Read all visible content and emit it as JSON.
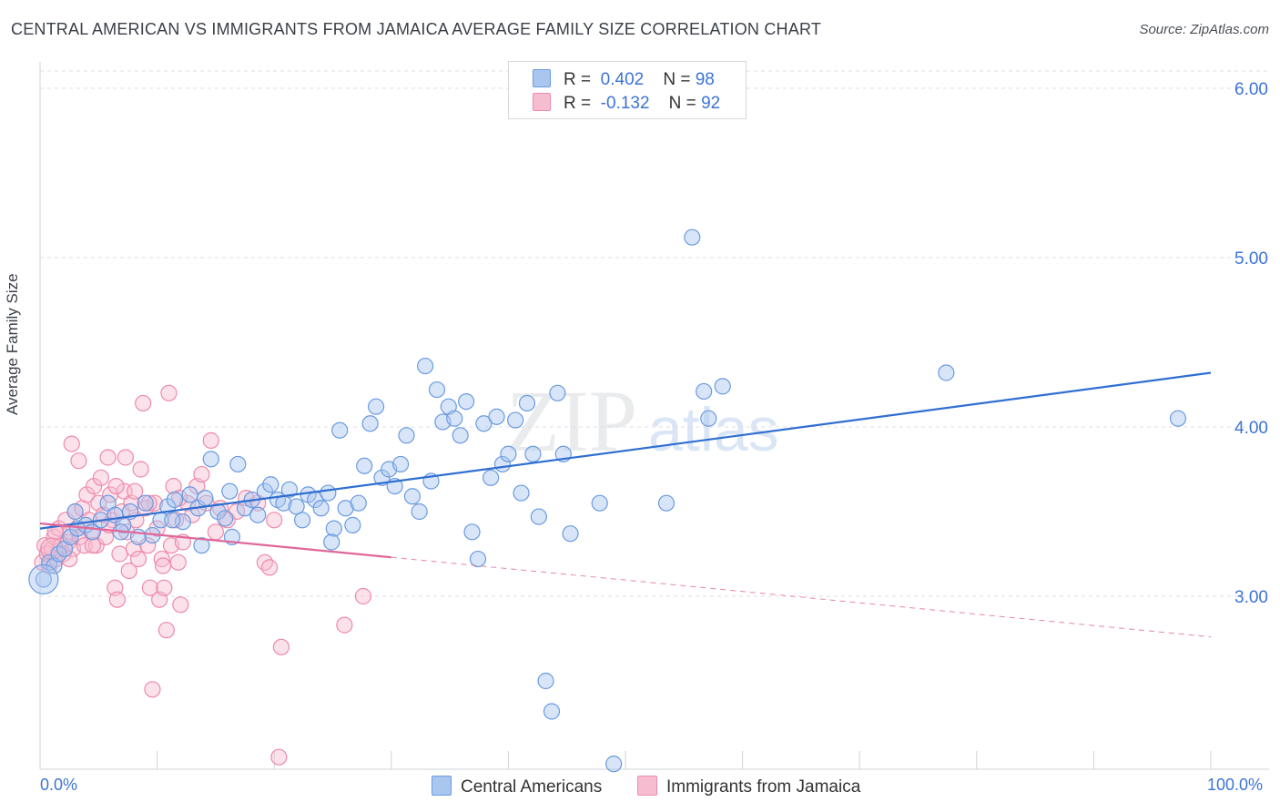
{
  "title": "CENTRAL AMERICAN VS IMMIGRANTS FROM JAMAICA AVERAGE FAMILY SIZE CORRELATION CHART",
  "source": "Source: ZipAtlas.com",
  "watermark": {
    "zip": "ZIP",
    "atlas": "atlas"
  },
  "legend": {
    "rows": [
      {
        "r_label": "R =",
        "r_value": "0.402",
        "n_label": "N =",
        "n_value": "98"
      },
      {
        "r_label": "R =",
        "r_value": "-0.132",
        "n_label": "N =",
        "n_value": "92"
      }
    ]
  },
  "bottom_legend": {
    "series1": "Central Americans",
    "series2": "Immigrants from Jamaica"
  },
  "x_axis": {
    "min_label": "0.0%",
    "max_label": "100.0%"
  },
  "chart_data": {
    "type": "scatter",
    "title": "CENTRAL AMERICAN VS IMMIGRANTS FROM JAMAICA AVERAGE FAMILY SIZE CORRELATION CHART",
    "xlabel": "",
    "ylabel": "Average Family Size",
    "xlim": [
      0,
      100
    ],
    "ylim": [
      2.0,
      6.15
    ],
    "y_ticks": [
      3.0,
      4.0,
      5.0,
      6.0
    ],
    "y_tick_labels": [
      "3.00",
      "4.00",
      "5.00",
      "6.00"
    ],
    "grid": true,
    "colors": {
      "series1": "#6a9be0",
      "series2": "#ee8aaa",
      "line1": "#2f6fd1",
      "line2": "#e0679a",
      "fill1": "#a9c6ef",
      "fill2": "#f6bcd0"
    },
    "series": [
      {
        "name": "Central Americans",
        "R": 0.402,
        "N": 98,
        "trend": {
          "x": [
            0,
            100
          ],
          "y": [
            3.4,
            4.32
          ]
        },
        "points": [
          [
            0.3,
            3.1
          ],
          [
            0.8,
            3.2
          ],
          [
            1.2,
            3.18
          ],
          [
            1.6,
            3.25
          ],
          [
            2.1,
            3.28
          ],
          [
            2.6,
            3.35
          ],
          [
            3.2,
            3.4
          ],
          [
            3.9,
            3.42
          ],
          [
            4.5,
            3.38
          ],
          [
            5.2,
            3.45
          ],
          [
            5.8,
            3.55
          ],
          [
            6.4,
            3.48
          ],
          [
            7.1,
            3.42
          ],
          [
            7.7,
            3.5
          ],
          [
            8.4,
            3.35
          ],
          [
            9.0,
            3.55
          ],
          [
            9.6,
            3.36
          ],
          [
            10.3,
            3.45
          ],
          [
            10.9,
            3.53
          ],
          [
            11.5,
            3.57
          ],
          [
            12.2,
            3.44
          ],
          [
            12.8,
            3.6
          ],
          [
            13.5,
            3.52
          ],
          [
            14.1,
            3.58
          ],
          [
            14.6,
            3.81
          ],
          [
            15.2,
            3.5
          ],
          [
            15.8,
            3.46
          ],
          [
            16.4,
            3.35
          ],
          [
            16.9,
            3.78
          ],
          [
            17.5,
            3.52
          ],
          [
            18.1,
            3.57
          ],
          [
            18.6,
            3.48
          ],
          [
            19.2,
            3.62
          ],
          [
            19.7,
            3.66
          ],
          [
            20.3,
            3.57
          ],
          [
            20.8,
            3.55
          ],
          [
            21.3,
            3.63
          ],
          [
            21.9,
            3.53
          ],
          [
            22.4,
            3.45
          ],
          [
            22.9,
            3.6
          ],
          [
            23.5,
            3.57
          ],
          [
            24.0,
            3.52
          ],
          [
            24.6,
            3.61
          ],
          [
            25.1,
            3.4
          ],
          [
            25.6,
            3.98
          ],
          [
            26.1,
            3.52
          ],
          [
            26.7,
            3.42
          ],
          [
            27.2,
            3.55
          ],
          [
            27.7,
            3.77
          ],
          [
            28.2,
            4.02
          ],
          [
            28.7,
            4.12
          ],
          [
            29.2,
            3.7
          ],
          [
            29.8,
            3.75
          ],
          [
            30.3,
            3.65
          ],
          [
            30.8,
            3.78
          ],
          [
            31.3,
            3.95
          ],
          [
            31.8,
            3.59
          ],
          [
            32.4,
            3.5
          ],
          [
            32.9,
            4.36
          ],
          [
            33.4,
            3.68
          ],
          [
            33.9,
            4.22
          ],
          [
            34.4,
            4.03
          ],
          [
            34.9,
            4.12
          ],
          [
            35.4,
            4.05
          ],
          [
            35.9,
            3.95
          ],
          [
            36.4,
            4.15
          ],
          [
            36.9,
            3.38
          ],
          [
            37.4,
            3.22
          ],
          [
            37.9,
            4.02
          ],
          [
            38.5,
            3.7
          ],
          [
            39.0,
            4.06
          ],
          [
            39.5,
            3.78
          ],
          [
            40.0,
            3.84
          ],
          [
            40.6,
            4.04
          ],
          [
            41.1,
            3.61
          ],
          [
            41.6,
            4.14
          ],
          [
            42.1,
            3.84
          ],
          [
            42.6,
            3.47
          ],
          [
            43.2,
            2.5
          ],
          [
            43.7,
            2.32
          ],
          [
            44.2,
            4.2
          ],
          [
            44.7,
            3.84
          ],
          [
            45.3,
            3.37
          ],
          [
            47.8,
            3.55
          ],
          [
            49.0,
            2.01
          ],
          [
            53.5,
            3.55
          ],
          [
            55.7,
            5.12
          ],
          [
            56.7,
            4.21
          ],
          [
            58.3,
            4.24
          ],
          [
            57.1,
            4.05
          ],
          [
            77.4,
            4.32
          ],
          [
            97.2,
            4.05
          ],
          [
            3.0,
            3.5
          ],
          [
            6.9,
            3.38
          ],
          [
            11.3,
            3.45
          ],
          [
            13.8,
            3.3
          ],
          [
            16.2,
            3.62
          ],
          [
            24.9,
            3.32
          ]
        ]
      },
      {
        "name": "Immigrants from Jamaica",
        "R": -0.132,
        "N": 92,
        "trend": {
          "x": [
            0,
            30
          ],
          "y": [
            3.43,
            3.23
          ]
        },
        "trend_dashed": {
          "x": [
            30,
            100
          ],
          "y": [
            3.23,
            2.76
          ]
        },
        "points": [
          [
            0.2,
            3.2
          ],
          [
            0.4,
            3.3
          ],
          [
            0.6,
            3.25
          ],
          [
            0.8,
            3.18
          ],
          [
            1.0,
            3.28
          ],
          [
            1.2,
            3.35
          ],
          [
            1.4,
            3.22
          ],
          [
            1.6,
            3.4
          ],
          [
            1.8,
            3.3
          ],
          [
            2.0,
            3.25
          ],
          [
            2.2,
            3.45
          ],
          [
            2.4,
            3.32
          ],
          [
            2.6,
            3.38
          ],
          [
            2.8,
            3.28
          ],
          [
            3.0,
            3.5
          ],
          [
            3.2,
            3.4
          ],
          [
            3.4,
            3.35
          ],
          [
            3.6,
            3.52
          ],
          [
            3.8,
            3.3
          ],
          [
            4.0,
            3.6
          ],
          [
            4.2,
            3.45
          ],
          [
            4.4,
            3.38
          ],
          [
            4.6,
            3.65
          ],
          [
            4.8,
            3.3
          ],
          [
            5.0,
            3.55
          ],
          [
            5.2,
            3.7
          ],
          [
            5.4,
            3.48
          ],
          [
            5.6,
            3.35
          ],
          [
            5.8,
            3.82
          ],
          [
            6.0,
            3.6
          ],
          [
            6.2,
            3.45
          ],
          [
            6.4,
            3.05
          ],
          [
            6.6,
            2.98
          ],
          [
            6.8,
            3.25
          ],
          [
            7.0,
            3.5
          ],
          [
            7.2,
            3.62
          ],
          [
            7.4,
            3.38
          ],
          [
            7.6,
            3.15
          ],
          [
            7.8,
            3.55
          ],
          [
            8.0,
            3.28
          ],
          [
            8.2,
            3.45
          ],
          [
            8.4,
            3.22
          ],
          [
            8.6,
            3.75
          ],
          [
            8.8,
            4.14
          ],
          [
            9.0,
            3.52
          ],
          [
            9.2,
            3.3
          ],
          [
            9.4,
            3.05
          ],
          [
            9.6,
            2.45
          ],
          [
            9.8,
            3.55
          ],
          [
            10.0,
            3.4
          ],
          [
            10.2,
            2.98
          ],
          [
            10.4,
            3.22
          ],
          [
            10.6,
            3.05
          ],
          [
            10.8,
            2.8
          ],
          [
            11.0,
            4.2
          ],
          [
            11.2,
            3.3
          ],
          [
            11.4,
            3.65
          ],
          [
            11.6,
            3.45
          ],
          [
            11.8,
            3.2
          ],
          [
            12.0,
            2.95
          ],
          [
            12.2,
            3.32
          ],
          [
            12.6,
            3.55
          ],
          [
            13.0,
            3.48
          ],
          [
            13.4,
            3.65
          ],
          [
            13.8,
            3.72
          ],
          [
            14.2,
            3.55
          ],
          [
            14.6,
            3.92
          ],
          [
            15.0,
            3.38
          ],
          [
            15.4,
            3.52
          ],
          [
            16.0,
            3.45
          ],
          [
            16.8,
            3.5
          ],
          [
            17.6,
            3.58
          ],
          [
            18.6,
            3.55
          ],
          [
            19.2,
            3.2
          ],
          [
            19.6,
            3.17
          ],
          [
            20.0,
            3.45
          ],
          [
            20.6,
            2.7
          ],
          [
            20.4,
            2.05
          ],
          [
            26.0,
            2.83
          ],
          [
            27.6,
            3.0
          ],
          [
            2.7,
            3.9
          ],
          [
            3.3,
            3.8
          ],
          [
            4.5,
            3.3
          ],
          [
            5.9,
            3.42
          ],
          [
            6.5,
            3.65
          ],
          [
            7.3,
            3.82
          ],
          [
            8.1,
            3.62
          ],
          [
            9.3,
            3.55
          ],
          [
            10.5,
            3.18
          ],
          [
            11.9,
            3.58
          ],
          [
            1.3,
            3.38
          ],
          [
            2.5,
            3.22
          ]
        ]
      }
    ]
  }
}
